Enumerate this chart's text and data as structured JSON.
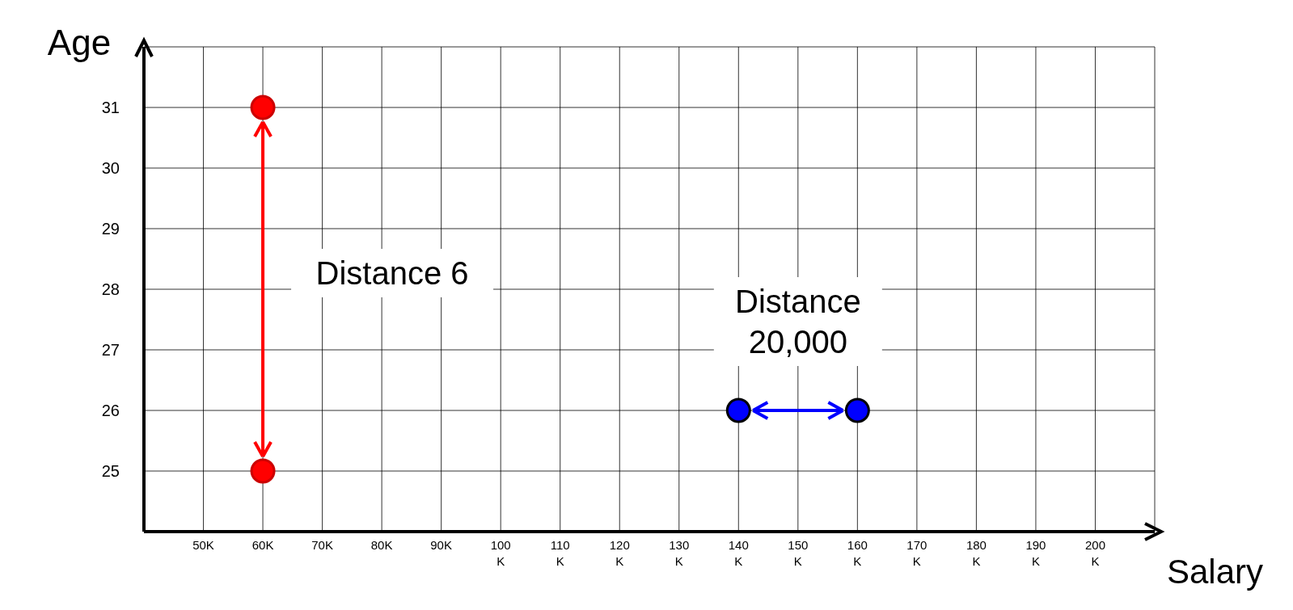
{
  "chart_data": {
    "type": "scatter",
    "xlabel": "Salary",
    "ylabel": "Age",
    "xlim": [
      40000,
      210000
    ],
    "ylim": [
      24,
      32
    ],
    "xticks": [
      {
        "value": 50000,
        "label": "50K"
      },
      {
        "value": 60000,
        "label": "60K"
      },
      {
        "value": 70000,
        "label": "70K"
      },
      {
        "value": 80000,
        "label": "80K"
      },
      {
        "value": 90000,
        "label": "90K"
      },
      {
        "value": 100000,
        "label": "100K"
      },
      {
        "value": 110000,
        "label": "110K"
      },
      {
        "value": 120000,
        "label": "120K"
      },
      {
        "value": 130000,
        "label": "130K"
      },
      {
        "value": 140000,
        "label": "140K"
      },
      {
        "value": 150000,
        "label": "150K"
      },
      {
        "value": 160000,
        "label": "160K"
      },
      {
        "value": 170000,
        "label": "170K"
      },
      {
        "value": 180000,
        "label": "180K"
      },
      {
        "value": 190000,
        "label": "190K"
      },
      {
        "value": 200000,
        "label": "200K"
      },
      {
        "value": 210000,
        "label": null
      }
    ],
    "yticks": [
      25,
      26,
      27,
      28,
      29,
      30,
      31,
      {
        "value": 32,
        "label": null
      }
    ],
    "grid": true,
    "marker": "circle",
    "series": [
      {
        "color": "#ff0000",
        "x": [
          60000,
          60000
        ],
        "values": [
          31,
          25
        ]
      },
      {
        "color": "#0000ff",
        "x": [
          140000,
          160000
        ],
        "values": [
          26,
          26
        ]
      }
    ],
    "annotations": [
      "Distance 6",
      "Distance\n20,000"
    ]
  }
}
